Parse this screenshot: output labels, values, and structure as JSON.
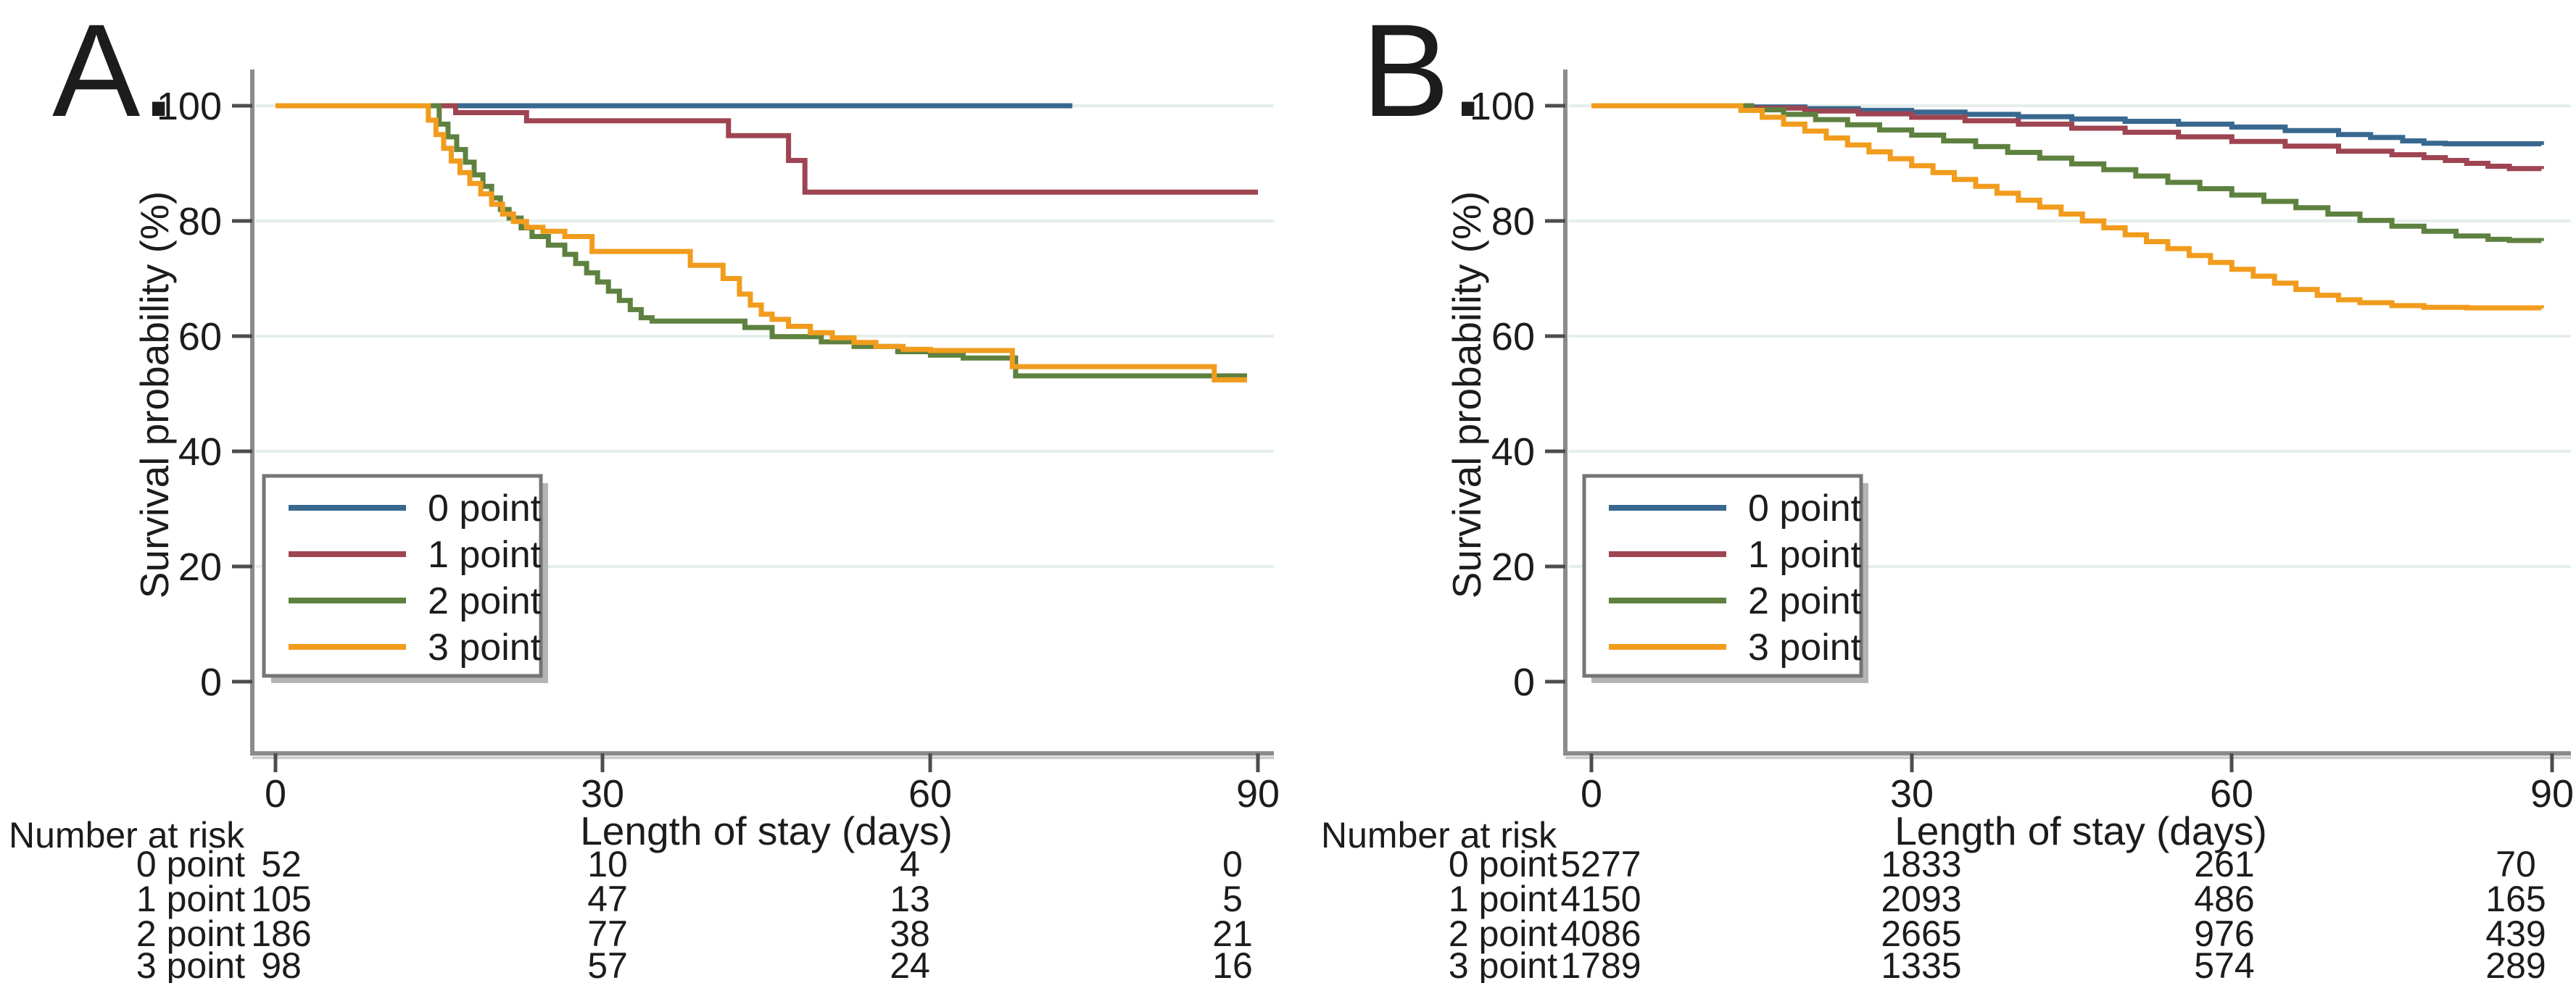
{
  "figure": {
    "panels": [
      {
        "label": "A.",
        "ylabel": "Survival probability (%)",
        "xlabel": "Length of stay (days)",
        "y_tick_labels": [
          "100",
          "80",
          "60",
          "40",
          "20",
          "0"
        ],
        "x_tick_labels": [
          "0",
          "30",
          "60",
          "90"
        ],
        "risk_table": {
          "header": "Number at risk",
          "rows": [
            {
              "label": "0 point",
              "values": [
                "52",
                "10",
                "4",
                "0"
              ]
            },
            {
              "label": "1 point",
              "values": [
                "105",
                "47",
                "13",
                "5"
              ]
            },
            {
              "label": "2 point",
              "values": [
                "186",
                "77",
                "38",
                "21"
              ]
            },
            {
              "label": "3 point",
              "values": [
                "98",
                "57",
                "24",
                "16"
              ]
            }
          ]
        }
      },
      {
        "label": "B.",
        "ylabel": "Survival probability (%)",
        "xlabel": "Length of stay (days)",
        "y_tick_labels": [
          "100",
          "80",
          "60",
          "40",
          "20",
          "0"
        ],
        "x_tick_labels": [
          "0",
          "30",
          "60",
          "90"
        ],
        "risk_table": {
          "header": "Number at risk",
          "rows": [
            {
              "label": "0 point",
              "values": [
                "5277",
                "1833",
                "261",
                "70"
              ]
            },
            {
              "label": "1 point",
              "values": [
                "4150",
                "2093",
                "486",
                "165"
              ]
            },
            {
              "label": "2 point",
              "values": [
                "4086",
                "2665",
                "976",
                "439"
              ]
            },
            {
              "label": "3 point",
              "values": [
                "1789",
                "1335",
                "574",
                "289"
              ]
            }
          ]
        }
      }
    ]
  },
  "colors": {
    "point0": "#38688f",
    "point1": "#9e4452",
    "point2": "#5e8140",
    "point3": "#f19c1d",
    "grid": "#e4efec",
    "spine": "#8b8b8b",
    "text": "#1c1c1c"
  },
  "chart_data": [
    {
      "type": "line",
      "subtype": "kaplan-meier-step",
      "panel": "A",
      "title": "A.",
      "xlabel": "Length of stay (days)",
      "ylabel": "Survival probability (%)",
      "xlim": [
        0,
        90
      ],
      "ylim": [
        0,
        100
      ],
      "x_ticks": [
        0,
        30,
        60,
        90
      ],
      "y_ticks": [
        100,
        80,
        60,
        40,
        20,
        0
      ],
      "grid": "horizontal",
      "legend_position": "lower-left",
      "series": [
        {
          "name": "0 point",
          "color": "#38688f",
          "n_at_risk": [
            52,
            10,
            4,
            0
          ],
          "points": [
            [
              0,
              100
            ],
            [
              73,
              100
            ]
          ]
        },
        {
          "name": "1 point",
          "color": "#9e4452",
          "n_at_risk": [
            105,
            47,
            13,
            5
          ],
          "points": [
            [
              0,
              100
            ],
            [
              16.5,
              98.8
            ],
            [
              23,
              97.4
            ],
            [
              41.5,
              94.8
            ],
            [
              47,
              90.5
            ],
            [
              48.5,
              85
            ],
            [
              90,
              85
            ]
          ]
        },
        {
          "name": "2 point",
          "color": "#5e8140",
          "n_at_risk": [
            186,
            77,
            38,
            21
          ],
          "points": [
            [
              0,
              100
            ],
            [
              15,
              96.8
            ],
            [
              15.8,
              94.6
            ],
            [
              16.6,
              92.4
            ],
            [
              17.4,
              90.2
            ],
            [
              18.2,
              88
            ],
            [
              19,
              86
            ],
            [
              19.8,
              84
            ],
            [
              20.6,
              82
            ],
            [
              21.4,
              80.5
            ],
            [
              22.5,
              78.8
            ],
            [
              23.5,
              77.3
            ],
            [
              25,
              75.8
            ],
            [
              26.5,
              74.2
            ],
            [
              27.5,
              72.6
            ],
            [
              28.5,
              71
            ],
            [
              29.5,
              69.4
            ],
            [
              30.5,
              67.8
            ],
            [
              31.5,
              66.2
            ],
            [
              32.5,
              64.6
            ],
            [
              33.5,
              63.2
            ],
            [
              34.5,
              62.6
            ],
            [
              43,
              61.5
            ],
            [
              45.5,
              59.9
            ],
            [
              50,
              59
            ],
            [
              53,
              58.2
            ],
            [
              57,
              57.3
            ],
            [
              60,
              56.7
            ],
            [
              63,
              56.2
            ],
            [
              67.8,
              53.1
            ],
            [
              89,
              53.1
            ]
          ]
        },
        {
          "name": "3 point",
          "color": "#f19c1d",
          "n_at_risk": [
            98,
            57,
            24,
            16
          ],
          "points": [
            [
              0,
              100
            ],
            [
              14,
              97.5
            ],
            [
              14.7,
              95
            ],
            [
              15.4,
              92.6
            ],
            [
              16.1,
              90.4
            ],
            [
              16.9,
              88.4
            ],
            [
              17.8,
              86.5
            ],
            [
              18.8,
              84.7
            ],
            [
              19.8,
              82.9
            ],
            [
              20.8,
              81.2
            ],
            [
              21.8,
              79.9
            ],
            [
              23,
              78.9
            ],
            [
              24.5,
              78.2
            ],
            [
              26.5,
              77.3
            ],
            [
              29,
              74.7
            ],
            [
              38,
              72.3
            ],
            [
              41,
              70
            ],
            [
              42.5,
              67.3
            ],
            [
              43.5,
              65.4
            ],
            [
              44.5,
              63.8
            ],
            [
              45.5,
              62.9
            ],
            [
              47,
              61.7
            ],
            [
              49,
              60.6
            ],
            [
              51,
              59.7
            ],
            [
              53,
              58.9
            ],
            [
              55,
              58.2
            ],
            [
              57.5,
              57.7
            ],
            [
              60,
              57.5
            ],
            [
              67.5,
              54.7
            ],
            [
              85.5,
              54.7
            ],
            [
              86,
              52.4
            ],
            [
              89,
              52.4
            ]
          ]
        }
      ]
    },
    {
      "type": "line",
      "subtype": "kaplan-meier-step",
      "panel": "B",
      "title": "B.",
      "xlabel": "Length of stay (days)",
      "ylabel": "Survival probability (%)",
      "xlim": [
        0,
        90
      ],
      "ylim": [
        0,
        100
      ],
      "x_ticks": [
        0,
        30,
        60,
        90
      ],
      "y_ticks": [
        100,
        80,
        60,
        40,
        20,
        0
      ],
      "grid": "horizontal",
      "legend_position": "lower-left",
      "series": [
        {
          "name": "0 point",
          "color": "#38688f",
          "n_at_risk": [
            5277,
            1833,
            261,
            70
          ],
          "points": [
            [
              0,
              100
            ],
            [
              13,
              100
            ],
            [
              15,
              99.8
            ],
            [
              20,
              99.5
            ],
            [
              25,
              99.2
            ],
            [
              30,
              98.9
            ],
            [
              35,
              98.5
            ],
            [
              40,
              98.1
            ],
            [
              45,
              97.7
            ],
            [
              50,
              97.3
            ],
            [
              55,
              96.8
            ],
            [
              60,
              96.3
            ],
            [
              65,
              95.7
            ],
            [
              70,
              95.0
            ],
            [
              73,
              94.5
            ],
            [
              76,
              93.9
            ],
            [
              78,
              93.5
            ],
            [
              80,
              93.4
            ],
            [
              89,
              93.2
            ]
          ]
        },
        {
          "name": "1 point",
          "color": "#9e4452",
          "n_at_risk": [
            4150,
            2093,
            486,
            165
          ],
          "points": [
            [
              0,
              100
            ],
            [
              13,
              100
            ],
            [
              15,
              99.6
            ],
            [
              20,
              99.1
            ],
            [
              25,
              98.6
            ],
            [
              30,
              98.0
            ],
            [
              35,
              97.4
            ],
            [
              40,
              96.8
            ],
            [
              45,
              96.1
            ],
            [
              50,
              95.4
            ],
            [
              55,
              94.6
            ],
            [
              60,
              93.8
            ],
            [
              65,
              93.0
            ],
            [
              70,
              92.1
            ],
            [
              75,
              91.5
            ],
            [
              78,
              91.0
            ],
            [
              80,
              90.5
            ],
            [
              82,
              90.0
            ],
            [
              84,
              89.5
            ],
            [
              86,
              89.1
            ],
            [
              89,
              89.0
            ]
          ]
        },
        {
          "name": "2 point",
          "color": "#5e8140",
          "n_at_risk": [
            4086,
            2665,
            976,
            439
          ],
          "points": [
            [
              0,
              100
            ],
            [
              13,
              100
            ],
            [
              15,
              99.3
            ],
            [
              18,
              98.5
            ],
            [
              21,
              97.6
            ],
            [
              24,
              96.7
            ],
            [
              27,
              95.8
            ],
            [
              30,
              94.9
            ],
            [
              33,
              93.9
            ],
            [
              36,
              92.9
            ],
            [
              39,
              91.9
            ],
            [
              42,
              90.9
            ],
            [
              45,
              89.9
            ],
            [
              48,
              88.9
            ],
            [
              51,
              87.8
            ],
            [
              54,
              86.7
            ],
            [
              57,
              85.6
            ],
            [
              60,
              84.5
            ],
            [
              63,
              83.4
            ],
            [
              66,
              82.3
            ],
            [
              69,
              81.2
            ],
            [
              72,
              80.1
            ],
            [
              75,
              79.1
            ],
            [
              78,
              78.2
            ],
            [
              81,
              77.4
            ],
            [
              84,
              76.8
            ],
            [
              86,
              76.6
            ],
            [
              89,
              76.5
            ]
          ]
        },
        {
          "name": "3 point",
          "color": "#f19c1d",
          "n_at_risk": [
            1789,
            1335,
            574,
            289
          ],
          "points": [
            [
              0,
              100
            ],
            [
              13,
              100
            ],
            [
              14,
              99.2
            ],
            [
              16,
              98.0
            ],
            [
              18,
              96.8
            ],
            [
              20,
              95.6
            ],
            [
              22,
              94.4
            ],
            [
              24,
              93.2
            ],
            [
              26,
              92.0
            ],
            [
              28,
              90.8
            ],
            [
              30,
              89.6
            ],
            [
              32,
              88.4
            ],
            [
              34,
              87.2
            ],
            [
              36,
              86.0
            ],
            [
              38,
              84.8
            ],
            [
              40,
              83.6
            ],
            [
              42,
              82.4
            ],
            [
              44,
              81.2
            ],
            [
              46,
              80.0
            ],
            [
              48,
              78.8
            ],
            [
              50,
              77.6
            ],
            [
              52,
              76.4
            ],
            [
              54,
              75.2
            ],
            [
              56,
              74.0
            ],
            [
              58,
              72.8
            ],
            [
              60,
              71.6
            ],
            [
              62,
              70.4
            ],
            [
              64,
              69.2
            ],
            [
              66,
              68.1
            ],
            [
              68,
              67.1
            ],
            [
              70,
              66.3
            ],
            [
              72,
              65.8
            ],
            [
              75,
              65.3
            ],
            [
              78,
              65.0
            ],
            [
              82,
              64.9
            ],
            [
              89,
              64.8
            ]
          ]
        }
      ]
    }
  ]
}
